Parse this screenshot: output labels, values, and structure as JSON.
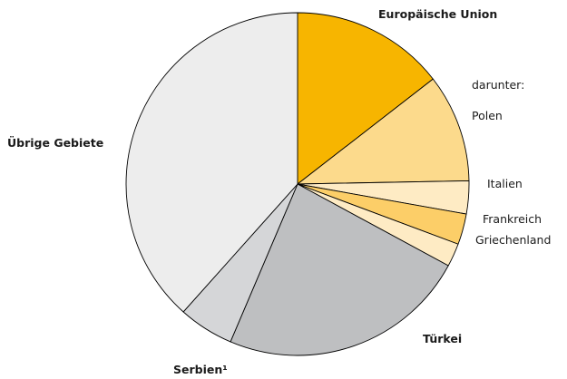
{
  "chart_data": {
    "type": "pie",
    "start_angle_deg": 0,
    "direction": "clockwise",
    "values_unit": "% share (estimated)",
    "slices": [
      {
        "id": "eu-rest",
        "label": "Europäische Union",
        "bold": true,
        "value": 14.5,
        "color": "#F7B500"
      },
      {
        "id": "polen",
        "label": "Polen",
        "bold": false,
        "value": 10.2,
        "color": "#FCDA8C"
      },
      {
        "id": "italien",
        "label": "Italien",
        "bold": false,
        "value": 3.1,
        "color": "#FEEBC4"
      },
      {
        "id": "frankreich",
        "label": "Frankreich",
        "bold": false,
        "value": 2.9,
        "color": "#FCCE68"
      },
      {
        "id": "griechenland",
        "label": "Griechenland",
        "bold": false,
        "value": 2.2,
        "color": "#FEEBC4"
      },
      {
        "id": "tuerkei",
        "label": "Türkei",
        "bold": true,
        "value": 23.5,
        "color": "#BEBFC1"
      },
      {
        "id": "serbien",
        "label": "Serbien¹",
        "bold": true,
        "value": 5.2,
        "color": "#D5D6D8"
      },
      {
        "id": "uebrige",
        "label": "Übrige Gebiete",
        "bold": true,
        "value": 38.4,
        "color": "#EDEDED"
      }
    ],
    "extra_labels": [
      {
        "id": "darunter",
        "text": "darunter:"
      }
    ]
  }
}
